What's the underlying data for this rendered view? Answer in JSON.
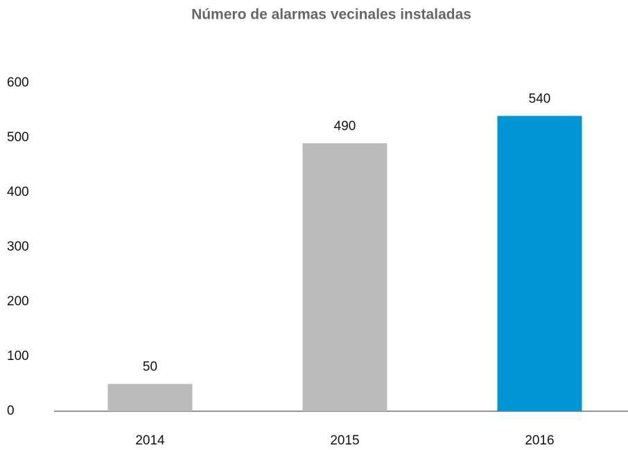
{
  "chart_data": {
    "type": "bar",
    "title": "Número de alarmas vecinales instaladas",
    "categories": [
      "2014",
      "2015",
      "2016"
    ],
    "values": [
      50,
      490,
      540
    ],
    "colors": [
      "#bbbbbb",
      "#bbbbbb",
      "#0096d6"
    ],
    "ylim": [
      0,
      600
    ],
    "yticks": [
      0,
      100,
      200,
      300,
      400,
      500,
      600
    ],
    "grid": false
  }
}
